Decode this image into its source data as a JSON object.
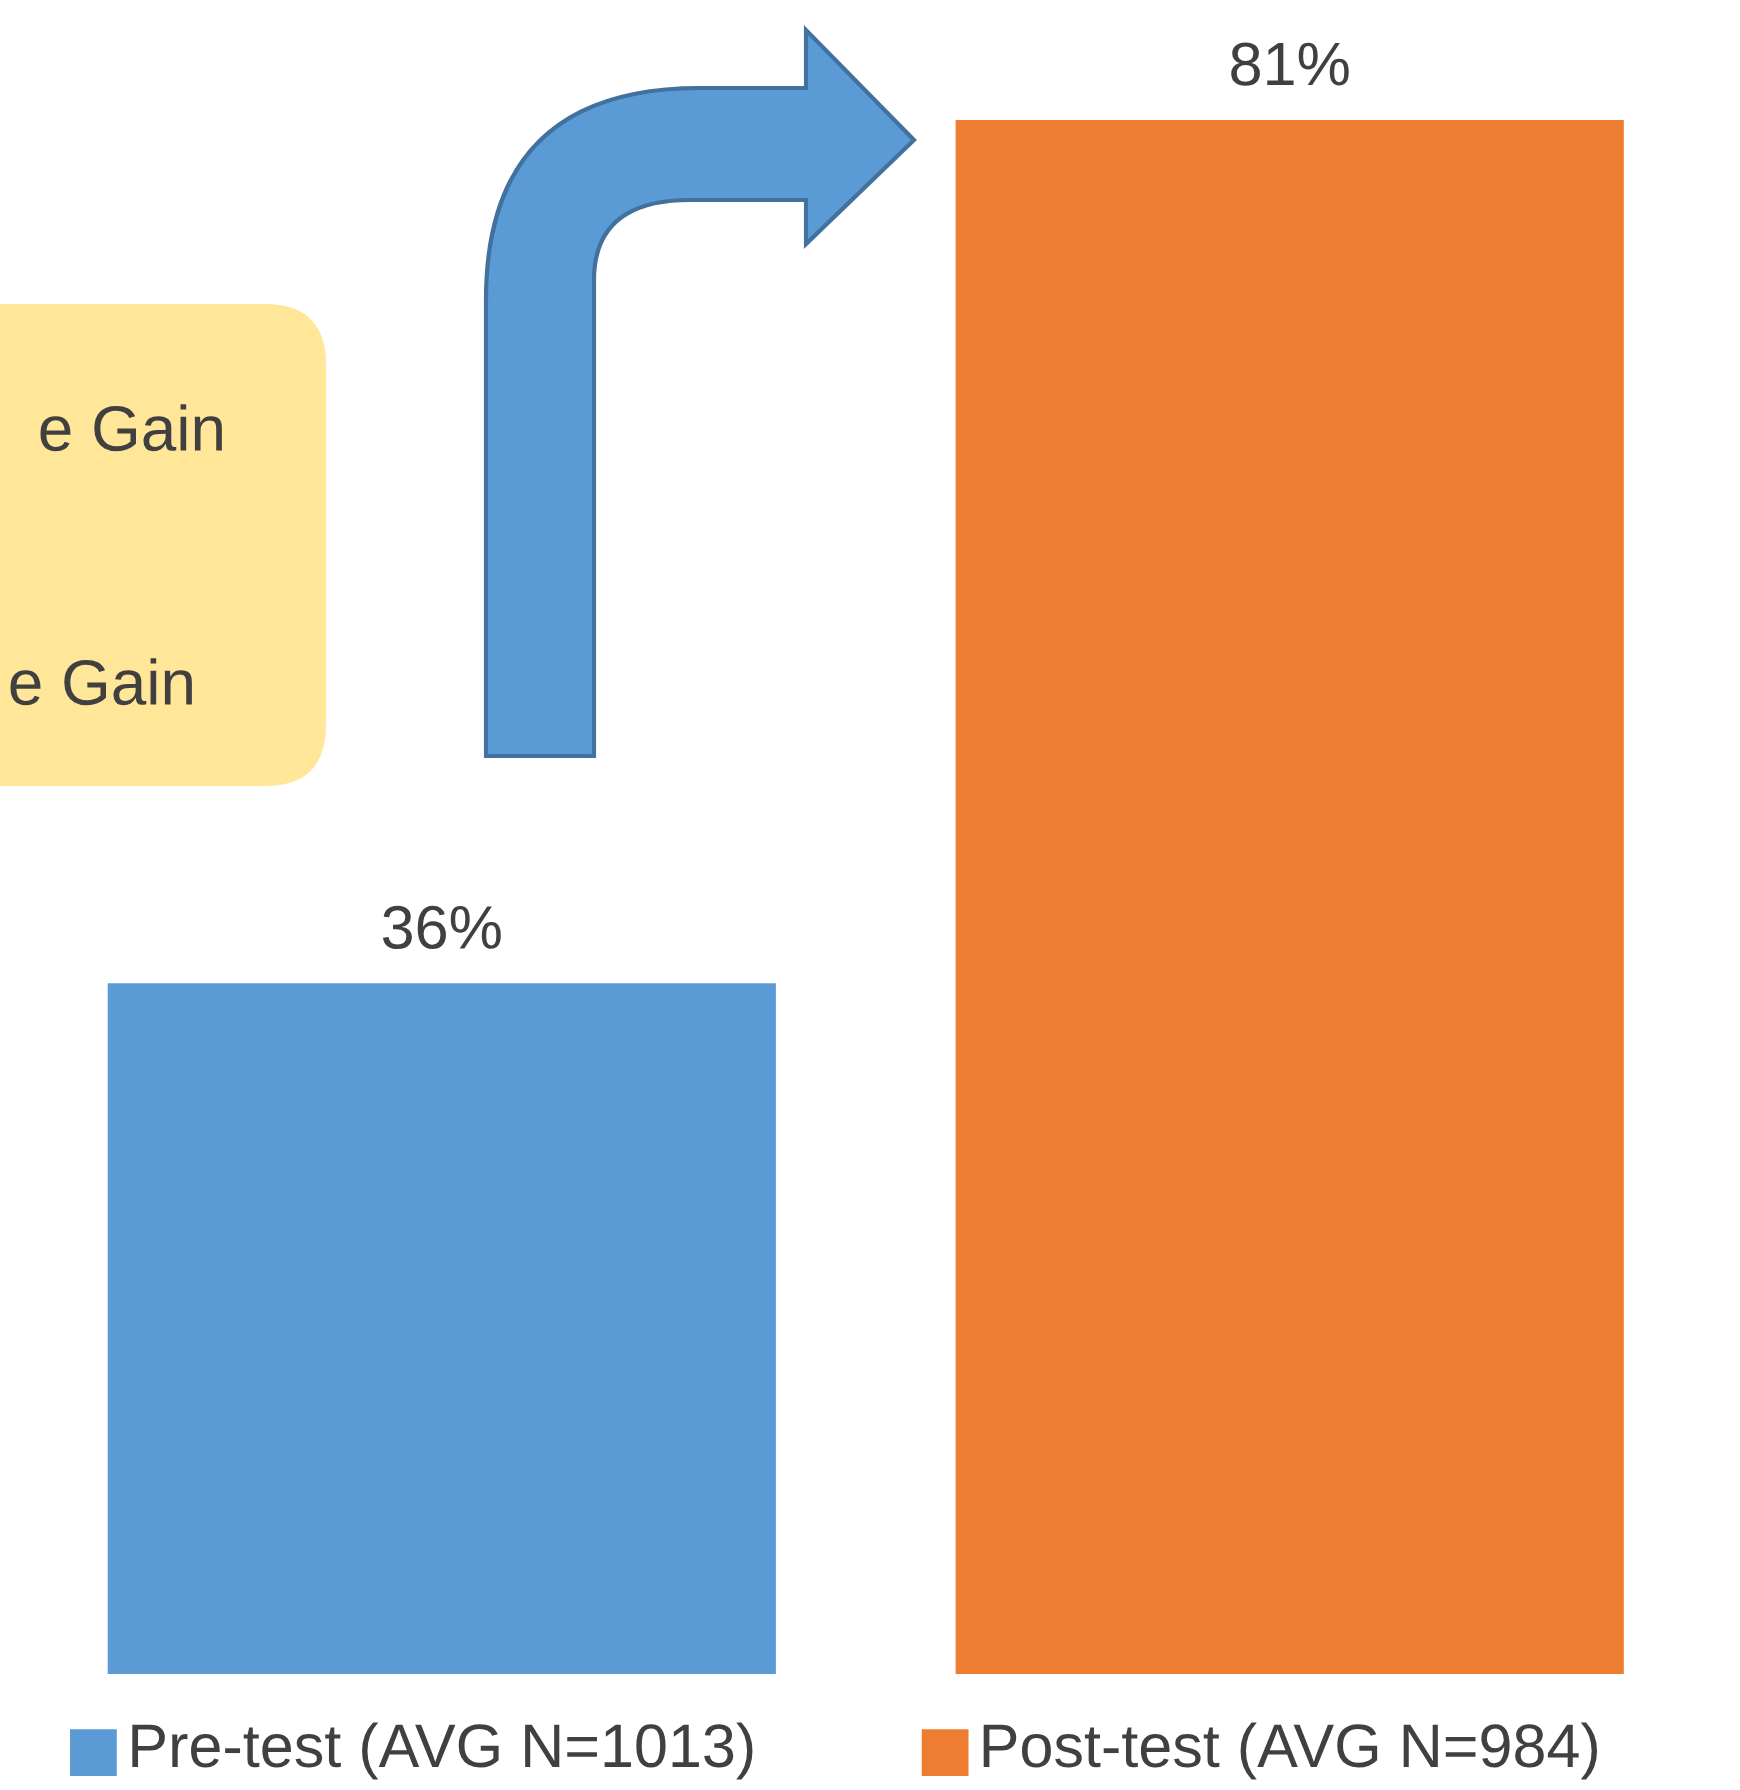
{
  "chart_data": {
    "type": "bar",
    "categories": [
      "Pre-test (AVG N=1013)",
      "Post-test (AVG N=984)"
    ],
    "values": [
      36,
      81
    ],
    "colors": [
      "#5b9bd5",
      "#ed7d31"
    ],
    "value_labels": [
      "36%",
      "81%"
    ],
    "annotations": [
      "e Gain",
      "e Gain"
    ]
  }
}
